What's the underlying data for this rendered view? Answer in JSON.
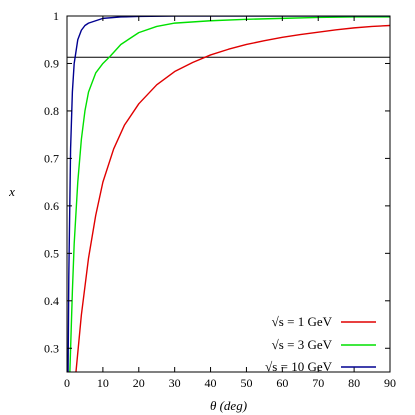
{
  "chart_data": {
    "type": "line",
    "title": "",
    "xlabel": "θ (deg)",
    "ylabel": "x",
    "xlim": [
      0,
      90
    ],
    "ylim": [
      0.25,
      1.0
    ],
    "xticks": [
      0,
      10,
      20,
      30,
      40,
      50,
      60,
      70,
      80,
      90
    ],
    "yticks": [
      0.3,
      0.4,
      0.5,
      0.6,
      0.7,
      0.8,
      0.9,
      1.0
    ],
    "ytick_labels": [
      "0.3",
      "0.4",
      "0.5",
      "0.6",
      "0.7",
      "0.8",
      "0.9",
      "1"
    ],
    "grid": false,
    "legend_position": "bottom-right",
    "reference_lines": [
      {
        "orientation": "horizontal",
        "y": 0.913,
        "color": "#000000"
      }
    ],
    "series": [
      {
        "name": "√s = 1 GeV",
        "color": "#e00000",
        "x": [
          2.5,
          4,
          6,
          8,
          10,
          13,
          16,
          20,
          25,
          30,
          35,
          40,
          45,
          50,
          55,
          60,
          65,
          70,
          75,
          80,
          85,
          90
        ],
        "y": [
          0.25,
          0.37,
          0.49,
          0.58,
          0.65,
          0.72,
          0.77,
          0.815,
          0.855,
          0.883,
          0.902,
          0.918,
          0.93,
          0.94,
          0.948,
          0.955,
          0.961,
          0.966,
          0.971,
          0.975,
          0.978,
          0.98
        ]
      },
      {
        "name": "√s = 3 GeV",
        "color": "#00e000",
        "x": [
          0.8,
          1.5,
          2,
          3,
          4,
          5,
          6,
          8,
          10,
          12,
          15,
          20,
          25,
          30,
          40,
          50,
          60,
          70,
          80,
          90
        ],
        "y": [
          0.25,
          0.42,
          0.52,
          0.65,
          0.74,
          0.8,
          0.84,
          0.88,
          0.9,
          0.915,
          0.94,
          0.965,
          0.978,
          0.985,
          0.99,
          0.993,
          0.995,
          0.997,
          0.998,
          0.998
        ]
      },
      {
        "name": "√s = 10 GeV",
        "color": "#000090",
        "x": [
          0.3,
          0.5,
          1,
          1.5,
          2,
          3,
          4,
          5,
          6,
          8,
          10,
          15,
          20,
          30,
          50,
          90
        ],
        "y": [
          0.25,
          0.45,
          0.72,
          0.84,
          0.9,
          0.95,
          0.97,
          0.98,
          0.985,
          0.99,
          0.995,
          0.998,
          0.999,
          1.0,
          1.0,
          1.0
        ]
      }
    ]
  }
}
